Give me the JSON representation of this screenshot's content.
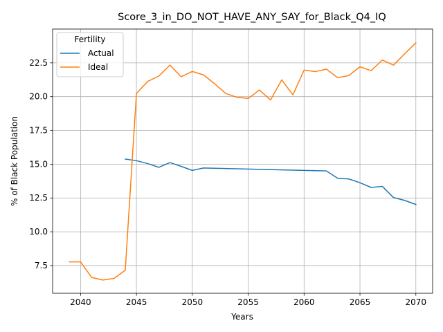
{
  "chart_data": {
    "type": "line",
    "title": "Score_3_in_DO_NOT_HAVE_ANY_SAY_for_Black_Q4_IQ",
    "xlabel": "Years",
    "ylabel": "% of Black Population",
    "xlim": [
      2037.5,
      2071.5
    ],
    "ylim": [
      5.45,
      25.0
    ],
    "xticks": [
      2040,
      2045,
      2050,
      2055,
      2060,
      2065,
      2070
    ],
    "yticks": [
      7.5,
      10.0,
      12.5,
      15.0,
      17.5,
      20.0,
      22.5
    ],
    "grid": true,
    "legend": {
      "title": "Fertility",
      "placement": "top-left"
    },
    "series": [
      {
        "name": "Actual",
        "color": "#1f77b4",
        "x": [
          2044,
          2045,
          2046,
          2047,
          2048,
          2049,
          2050,
          2051,
          2062,
          2063,
          2064,
          2065,
          2066,
          2067,
          2068,
          2069,
          2070
        ],
        "y": [
          15.38,
          15.26,
          15.05,
          14.77,
          15.12,
          14.84,
          14.54,
          14.72,
          14.5,
          13.96,
          13.91,
          13.63,
          13.28,
          13.36,
          12.53,
          12.32,
          12.02
        ]
      },
      {
        "name": "Ideal",
        "color": "#ff7f0e",
        "x": [
          2039,
          2040,
          2041,
          2042,
          2043,
          2044,
          2045,
          2046,
          2047,
          2048,
          2049,
          2050,
          2051,
          2052,
          2053,
          2054,
          2055,
          2056,
          2057,
          2058,
          2059,
          2060,
          2061,
          2062,
          2063,
          2064,
          2065,
          2066,
          2067,
          2068,
          2069,
          2070
        ],
        "y": [
          7.77,
          7.77,
          6.62,
          6.43,
          6.55,
          7.16,
          20.23,
          21.12,
          21.52,
          22.33,
          21.47,
          21.86,
          21.61,
          20.95,
          20.23,
          19.95,
          19.86,
          20.49,
          19.75,
          21.24,
          20.13,
          21.96,
          21.85,
          22.03,
          21.4,
          21.56,
          22.21,
          21.92,
          22.71,
          22.33,
          23.17,
          23.98
        ]
      }
    ]
  }
}
